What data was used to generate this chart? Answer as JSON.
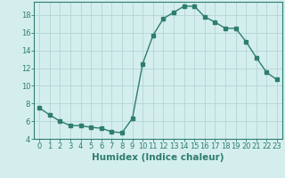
{
  "x": [
    0,
    1,
    2,
    3,
    4,
    5,
    6,
    7,
    8,
    9,
    10,
    11,
    12,
    13,
    14,
    15,
    16,
    17,
    18,
    19,
    20,
    21,
    22,
    23
  ],
  "y": [
    7.5,
    6.7,
    6.0,
    5.5,
    5.5,
    5.3,
    5.2,
    4.8,
    4.7,
    6.3,
    12.5,
    15.7,
    17.6,
    18.3,
    19.0,
    19.0,
    17.8,
    17.2,
    16.5,
    16.5,
    15.0,
    13.2,
    11.5,
    10.7
  ],
  "line_color": "#2e7d6e",
  "marker": "s",
  "marker_size": 2.2,
  "bg_color": "#d4eeee",
  "grid_color": "#b8d8d8",
  "xlabel": "Humidex (Indice chaleur)",
  "ylabel": "",
  "xlim": [
    -0.5,
    23.5
  ],
  "ylim": [
    4,
    19.5
  ],
  "yticks": [
    4,
    6,
    8,
    10,
    12,
    14,
    16,
    18
  ],
  "xticks": [
    0,
    1,
    2,
    3,
    4,
    5,
    6,
    7,
    8,
    9,
    10,
    11,
    12,
    13,
    14,
    15,
    16,
    17,
    18,
    19,
    20,
    21,
    22,
    23
  ],
  "tick_color": "#2e7d6e",
  "axis_color": "#2e7d6e",
  "xlabel_fontsize": 7.5,
  "tick_fontsize": 6.0
}
